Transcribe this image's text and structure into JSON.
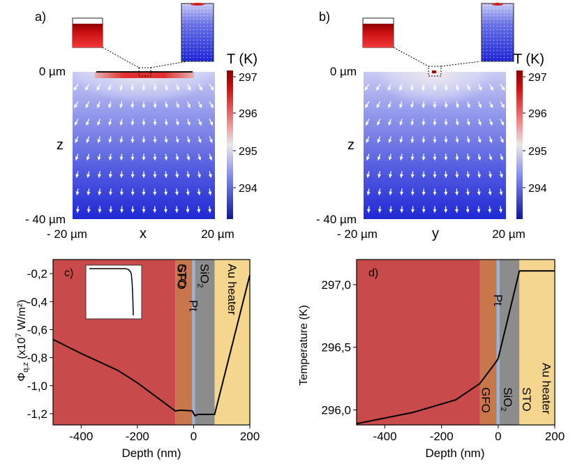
{
  "figure": {
    "panel_a": {
      "label": "a)",
      "top_tick": "0 µm",
      "bottom_tick": "- 40 µm",
      "z_label": "z",
      "x_left": "- 20 µm",
      "x_mid": "x",
      "x_right": "20 µm",
      "colorbar_title": "T (K)",
      "colorbar_ticks": [
        "297",
        "296",
        "295",
        "294"
      ]
    },
    "panel_b": {
      "label": "b)",
      "top_tick": "0 µm",
      "bottom_tick": "- 40 µm",
      "z_label": "z",
      "x_left": "- 20 µm",
      "x_mid": "y",
      "x_right": "20 µm",
      "colorbar_title": "T (K)",
      "colorbar_ticks": [
        "297",
        "296",
        "295",
        "294"
      ]
    },
    "colormap": {
      "low": "#1c24d6",
      "mid": "#e8e8e8",
      "high": "#c10000"
    }
  },
  "chart_data": [
    {
      "id": "c",
      "type": "line",
      "panel_label": "c)",
      "xlabel": "Depth (nm)",
      "ylabel_main": "Φ",
      "ylabel_sub": "q,z",
      "ylabel_rest": " (x10",
      "ylabel_exp": "7",
      "ylabel_tail": " W/m²)",
      "xlim": [
        -500,
        200
      ],
      "ylim": [
        -1.28,
        -0.1
      ],
      "xticks": [
        -400,
        -200,
        0,
        200
      ],
      "xtick_labels": [
        "-400",
        "-200",
        "0",
        "200"
      ],
      "yticks": [
        -0.2,
        -0.4,
        -0.6,
        -0.8,
        -1.0,
        -1.2
      ],
      "ytick_labels": [
        "-0,2",
        "-0,4",
        "-0,6",
        "-0,8",
        "-1,0",
        "-1,2"
      ],
      "regions": [
        {
          "name": "STO",
          "from": -500,
          "to": -65,
          "color": "#c94a4a"
        },
        {
          "name": "GFO",
          "from": -65,
          "to": -5,
          "color": "#c8764b"
        },
        {
          "name": "Pt",
          "from": -5,
          "to": 5,
          "color": "#8fb7e0"
        },
        {
          "name": "SiO",
          "sub": "2",
          "from": 5,
          "to": 75,
          "color": "#8c8c8c"
        },
        {
          "name": "Au heater",
          "from": 75,
          "to": 200,
          "color": "#f5d68e"
        }
      ],
      "series": [
        {
          "name": "flux",
          "x": [
            -500,
            -400,
            -270,
            -200,
            -65,
            -45,
            -5,
            5,
            15,
            75,
            200
          ],
          "y": [
            -0.67,
            -0.77,
            -0.89,
            -0.98,
            -1.18,
            -1.175,
            -1.18,
            -1.215,
            -1.205,
            -1.205,
            -0.21
          ]
        }
      ]
    },
    {
      "id": "d",
      "type": "line",
      "panel_label": "d)",
      "xlabel": "Depth (nm)",
      "ylabel": "Temperature (K)",
      "xlim": [
        -500,
        200
      ],
      "ylim": [
        295.88,
        297.2
      ],
      "xticks": [
        -400,
        -200,
        0,
        200
      ],
      "xtick_labels": [
        "-400",
        "-200",
        "0",
        "200"
      ],
      "yticks": [
        296.0,
        296.5,
        297.0
      ],
      "ytick_labels": [
        "296,0",
        "296,5",
        "297,0"
      ],
      "regions": [
        {
          "name": "STO",
          "from": -500,
          "to": -65,
          "color": "#c94a4a"
        },
        {
          "name": "GFO",
          "from": -65,
          "to": -5,
          "color": "#c8764b"
        },
        {
          "name": "Pt",
          "from": -5,
          "to": 5,
          "color": "#8fb7e0"
        },
        {
          "name": "SiO",
          "sub": "2",
          "from": 5,
          "to": 75,
          "color": "#8c8c8c"
        },
        {
          "name": "Au heater",
          "from": 75,
          "to": 200,
          "color": "#f5d68e"
        }
      ],
      "series": [
        {
          "name": "temperature",
          "x": [
            -500,
            -300,
            -150,
            -65,
            -5,
            0,
            75,
            200
          ],
          "y": [
            295.89,
            295.98,
            296.08,
            296.21,
            296.39,
            296.41,
            297.11,
            297.11
          ]
        }
      ]
    }
  ]
}
